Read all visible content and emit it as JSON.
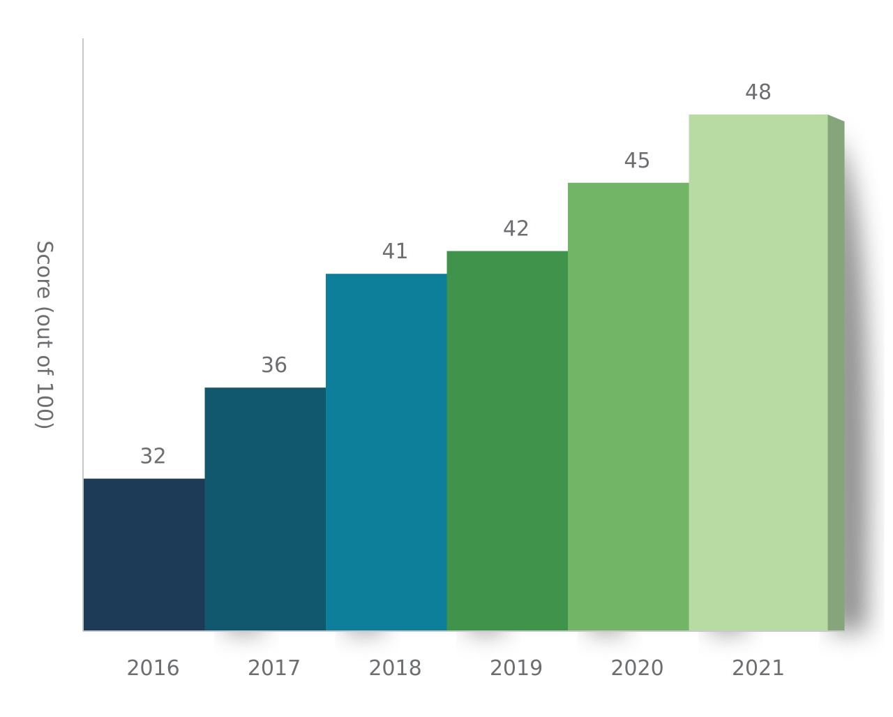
{
  "chart_data": {
    "type": "bar",
    "title": "",
    "xlabel": "",
    "ylabel": "Score (out of 100)",
    "categories": [
      "2016",
      "2017",
      "2018",
      "2019",
      "2020",
      "2021"
    ],
    "values": [
      32,
      36,
      41,
      42,
      45,
      48
    ],
    "data_labels": [
      "32",
      "36",
      "41",
      "42",
      "45",
      "48"
    ],
    "grid": false,
    "legend": "none",
    "bar_colors": [
      "#1d3a56",
      "#11586e",
      "#0e7f9a",
      "#40934b",
      "#73b566",
      "#b8dba4"
    ],
    "side_colors": [
      "#0a2540",
      "#05445a",
      "#086078",
      "#2d7236",
      "#5a9450",
      "#87a57b"
    ]
  }
}
